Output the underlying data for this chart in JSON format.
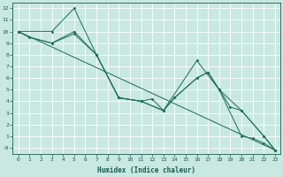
{
  "xlabel": "Humidex (Indice chaleur)",
  "background_color": "#c8e8e0",
  "grid_color": "#b8d8d0",
  "line_color": "#1a6b5a",
  "xlim": [
    -0.5,
    23.5
  ],
  "ylim": [
    -0.5,
    12.5
  ],
  "xticks": [
    0,
    1,
    2,
    3,
    4,
    5,
    6,
    7,
    8,
    9,
    10,
    11,
    12,
    13,
    14,
    15,
    16,
    17,
    18,
    19,
    20,
    21,
    22,
    23
  ],
  "yticks": [
    0,
    1,
    2,
    3,
    4,
    5,
    6,
    7,
    8,
    9,
    10,
    11,
    12
  ],
  "ytick_labels": [
    "-0",
    "1",
    "2",
    "3",
    "4",
    "5",
    "6",
    "7",
    "8",
    "9",
    "10",
    "11",
    "12"
  ],
  "series1": [
    [
      0,
      10
    ],
    [
      1,
      9.5
    ],
    [
      3,
      9.0
    ],
    [
      5,
      10.0
    ],
    [
      7,
      8.0
    ],
    [
      9,
      4.3
    ],
    [
      11,
      4.0
    ],
    [
      12,
      4.2
    ],
    [
      13,
      3.2
    ],
    [
      14,
      4.3
    ],
    [
      16,
      6.0
    ],
    [
      17,
      6.5
    ],
    [
      18,
      5.0
    ],
    [
      20,
      1.0
    ],
    [
      21,
      0.8
    ],
    [
      22,
      0.4
    ],
    [
      23,
      -0.2
    ]
  ],
  "series2": [
    [
      0,
      10
    ],
    [
      3,
      10.0
    ],
    [
      5,
      12.0
    ],
    [
      7,
      8.0
    ],
    [
      9,
      4.3
    ],
    [
      11,
      4.0
    ],
    [
      13,
      3.2
    ],
    [
      16,
      7.5
    ],
    [
      18,
      5.0
    ],
    [
      20,
      3.2
    ],
    [
      22,
      1.0
    ],
    [
      23,
      -0.2
    ]
  ],
  "series3": [
    [
      0,
      10
    ],
    [
      1,
      9.5
    ],
    [
      3,
      9.0
    ],
    [
      5,
      9.8
    ],
    [
      7,
      8.0
    ],
    [
      9,
      4.3
    ],
    [
      11,
      4.0
    ],
    [
      13,
      3.2
    ],
    [
      14,
      4.3
    ],
    [
      16,
      6.0
    ],
    [
      17,
      6.5
    ],
    [
      18,
      5.0
    ],
    [
      19,
      3.5
    ],
    [
      20,
      3.2
    ],
    [
      22,
      1.0
    ],
    [
      23,
      -0.2
    ]
  ],
  "series4": [
    [
      0,
      10
    ],
    [
      23,
      -0.2
    ]
  ]
}
